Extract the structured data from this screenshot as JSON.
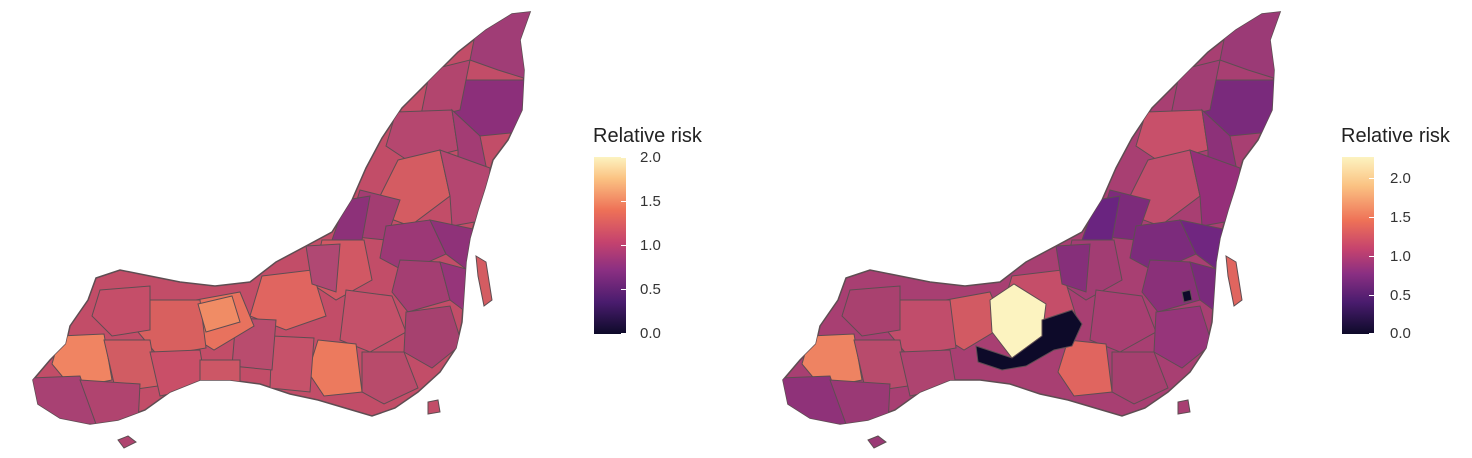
{
  "maps": [
    {
      "legend": {
        "title": "Relative risk",
        "ticks": [
          "2.0",
          "1.5",
          "1.0",
          "0.5",
          "0.0"
        ],
        "tick_values": [
          2.0,
          1.5,
          1.0,
          0.5,
          0.0
        ],
        "range": [
          0.0,
          2.0
        ]
      }
    },
    {
      "legend": {
        "title": "Relative risk",
        "ticks": [
          "2.0",
          "1.5",
          "1.0",
          "0.5",
          "0.0"
        ],
        "tick_values": [
          2.0,
          1.5,
          1.0,
          0.5,
          0.0
        ],
        "range": [
          0.0,
          2.3
        ]
      }
    }
  ],
  "colors": {
    "scale": [
      "#0d0a29",
      "#4a1c6e",
      "#8a2f82",
      "#c5436e",
      "#ee7157",
      "#fbc383",
      "#fcf3c0"
    ],
    "border": "#5e4d52"
  }
}
